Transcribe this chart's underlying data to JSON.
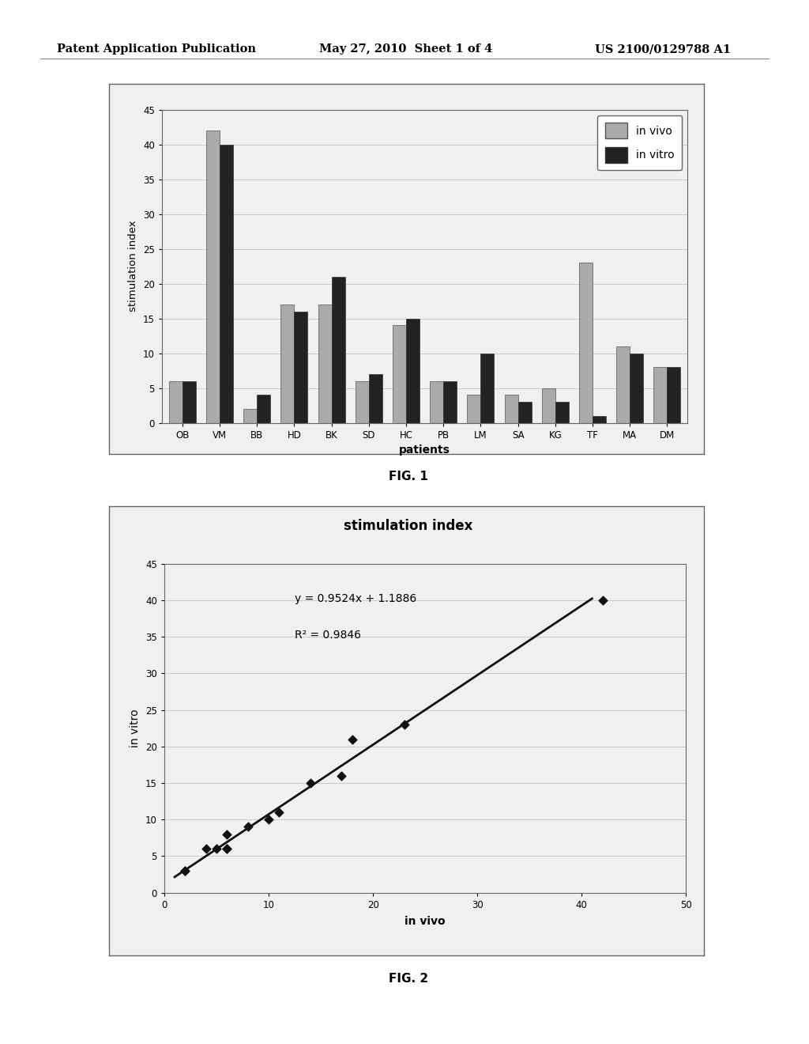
{
  "fig1": {
    "patients": [
      "OB",
      "VM",
      "BB",
      "HD",
      "BK",
      "SD",
      "HC",
      "PB",
      "LM",
      "SA",
      "KG",
      "TF",
      "MA",
      "DM"
    ],
    "in_vivo": [
      6,
      42,
      2,
      17,
      17,
      6,
      14,
      6,
      4,
      4,
      5,
      23,
      11,
      8
    ],
    "in_vitro": [
      6,
      40,
      4,
      16,
      21,
      7,
      15,
      6,
      10,
      3,
      3,
      1,
      10,
      8
    ],
    "ylabel": "stimulation index",
    "xlabel": "patients",
    "ylim": [
      0,
      45
    ],
    "yticks": [
      0,
      5,
      10,
      15,
      20,
      25,
      30,
      35,
      40,
      45
    ],
    "legend_invivo": "in vivo",
    "legend_invitro": "in vitro",
    "color_invivo": "#aaaaaa",
    "color_invitro": "#222222",
    "fig_label": "FIG. 1"
  },
  "fig2": {
    "x_invivo": [
      2,
      2,
      4,
      5,
      6,
      6,
      6,
      8,
      10,
      11,
      14,
      17,
      18,
      23,
      42
    ],
    "y_invitro": [
      3,
      3,
      6,
      6,
      6,
      6,
      8,
      9,
      10,
      11,
      15,
      16,
      21,
      23,
      40
    ],
    "title": "stimulation index",
    "xlabel": "in vivo",
    "ylabel": "in vitro",
    "xlim": [
      0,
      50
    ],
    "ylim": [
      0,
      45
    ],
    "xticks": [
      0,
      10,
      20,
      30,
      40,
      50
    ],
    "yticks": [
      0,
      5,
      10,
      15,
      20,
      25,
      30,
      35,
      40,
      45
    ],
    "equation": "y = 0.9524x + 1.1886",
    "r_squared": "R² = 0.9846",
    "line_slope": 0.9524,
    "line_intercept": 1.1886,
    "line_x_start": 1.0,
    "line_x_end": 41.0,
    "marker_color": "#111111",
    "line_color": "#111111",
    "fig_label": "FIG. 2"
  },
  "header_left": "Patent Application Publication",
  "header_mid": "May 27, 2010  Sheet 1 of 4",
  "header_right": "US 2100/0129788 A1",
  "bg_color": "#ffffff",
  "panel_bg": "#f0f0f0",
  "border_color": "#666666"
}
